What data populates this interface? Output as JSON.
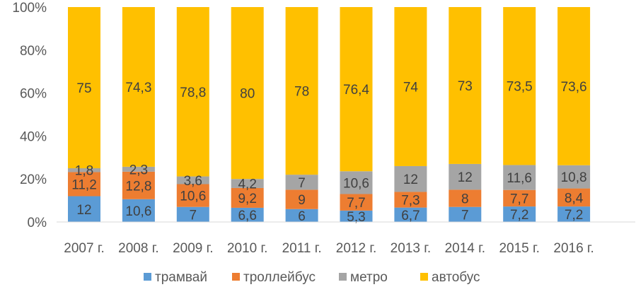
{
  "chart_data": {
    "type": "bar",
    "stacked": "percent",
    "title": "",
    "xlabel": "",
    "ylabel": "",
    "ylim": [
      0,
      100
    ],
    "yticks": [
      "0%",
      "20%",
      "40%",
      "60%",
      "80%",
      "100%"
    ],
    "grid": false,
    "legend_position": "bottom",
    "categories": [
      "2007 г.",
      "2008 г.",
      "2009 г.",
      "2010 г.",
      "2011 г.",
      "2012 г.",
      "2013 г.",
      "2014 г.",
      "2015 г.",
      "2016 г."
    ],
    "series": [
      {
        "name": "трамвай",
        "color": "#5B9BD5",
        "values": [
          12,
          10.6,
          7,
          6.6,
          6,
          5.3,
          6.7,
          7,
          7.2,
          7.2
        ],
        "labels": [
          "12",
          "10,6",
          "7",
          "6,6",
          "6",
          "5,3",
          "6,7",
          "7",
          "7,2",
          "7,2"
        ]
      },
      {
        "name": "троллейбус",
        "color": "#ED7D31",
        "values": [
          11.2,
          12.8,
          10.6,
          9.2,
          9,
          7.7,
          7.3,
          8,
          7.7,
          8.4
        ],
        "labels": [
          "11,2",
          "12,8",
          "10,6",
          "9,2",
          "9",
          "7,7",
          "7,3",
          "8",
          "7,7",
          "8,4"
        ]
      },
      {
        "name": "метро",
        "color": "#A5A5A5",
        "values": [
          1.8,
          2.3,
          3.6,
          4.2,
          7,
          10.6,
          12,
          12,
          11.6,
          10.8
        ],
        "labels": [
          "1,8",
          "2,3",
          "3,6",
          "4,2",
          "7",
          "10,6",
          "12",
          "12",
          "11,6",
          "10,8"
        ]
      },
      {
        "name": "автобус",
        "color": "#FFC000",
        "values": [
          75,
          74.3,
          78.8,
          80,
          78,
          76.4,
          74,
          73,
          73.5,
          73.6
        ],
        "labels": [
          "75",
          "74,3",
          "78,8",
          "80",
          "78",
          "76,4",
          "74",
          "73",
          "73,5",
          "73,6"
        ]
      }
    ]
  }
}
